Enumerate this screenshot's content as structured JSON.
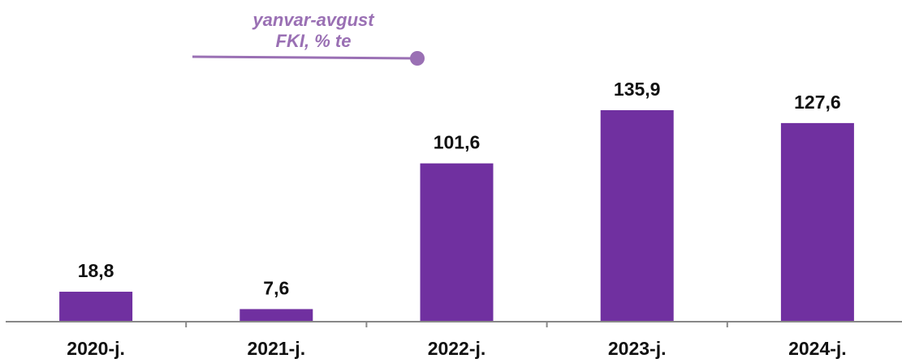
{
  "chart_data": {
    "type": "bar",
    "title": "yanvar-avgust",
    "subtitle": "FKI, % te",
    "categories": [
      "2020-j.",
      "2021-j.",
      "2022-j.",
      "2023-j.",
      "2024-j."
    ],
    "values": [
      18.8,
      7.6,
      101.6,
      135.9,
      127.6
    ],
    "value_labels": [
      "18,8",
      "7,6",
      "101,6",
      "135,9",
      "127,6"
    ],
    "color": "#7030a0"
  }
}
